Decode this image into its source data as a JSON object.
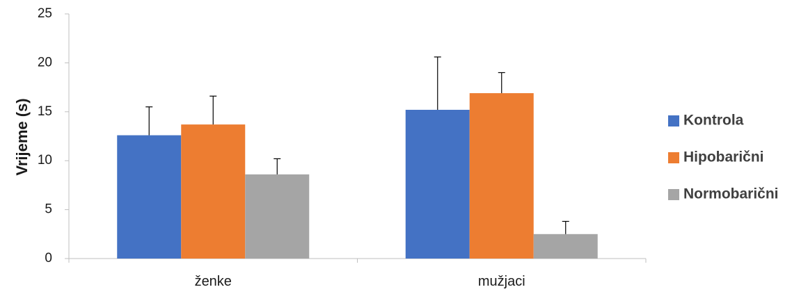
{
  "chart_data": {
    "type": "bar",
    "categories": [
      "ženke",
      "mužjaci"
    ],
    "series": [
      {
        "name": "Kontrola",
        "color": "#4472C4",
        "values": [
          12.6,
          15.2
        ],
        "errors": [
          2.9,
          5.4
        ]
      },
      {
        "name": "Hipobarični",
        "color": "#ED7D31",
        "values": [
          13.7,
          16.9
        ],
        "errors": [
          2.9,
          2.1
        ]
      },
      {
        "name": "Normobarični",
        "color": "#A5A5A5",
        "values": [
          8.6,
          2.5
        ],
        "errors": [
          1.6,
          1.3
        ]
      }
    ],
    "ylabel": "Vrijeme (s)",
    "xlabel": "",
    "ylim": [
      0,
      25
    ],
    "yticks": [
      "0",
      "5",
      "10",
      "15",
      "20",
      "25"
    ],
    "grid": false,
    "legend_position": "right",
    "error_bars": "upper"
  }
}
